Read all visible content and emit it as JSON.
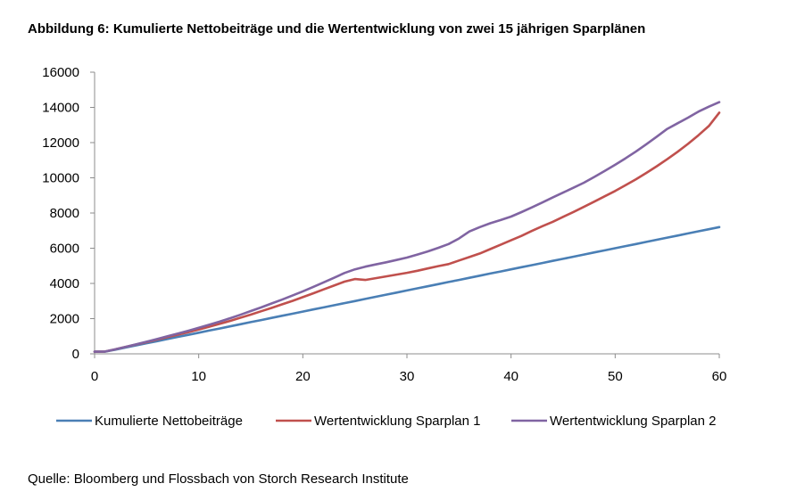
{
  "title": "Abbildung 6: Kumulierte Nettobeiträge und die Wertentwicklung von zwei 15 jährigen Sparplänen",
  "source": "Quelle: Bloomberg und Flossbach von Storch Research Institute",
  "chart_data": {
    "type": "line",
    "title": "Abbildung 6: Kumulierte Nettobeiträge und die Wertentwicklung von zwei 15 jährigen Sparplänen",
    "xlabel": "",
    "ylabel": "",
    "xlim": [
      0,
      60
    ],
    "ylim": [
      0,
      16000
    ],
    "xticks": [
      0,
      10,
      20,
      30,
      40,
      50,
      60
    ],
    "yticks": [
      0,
      2000,
      4000,
      6000,
      8000,
      10000,
      12000,
      14000,
      16000
    ],
    "grid": false,
    "legend_position": "bottom",
    "x": [
      0,
      1,
      2,
      3,
      4,
      5,
      6,
      7,
      8,
      9,
      10,
      11,
      12,
      13,
      14,
      15,
      16,
      17,
      18,
      19,
      20,
      21,
      22,
      23,
      24,
      25,
      26,
      27,
      28,
      29,
      30,
      31,
      32,
      33,
      34,
      35,
      36,
      37,
      38,
      39,
      40,
      41,
      42,
      43,
      44,
      45,
      46,
      47,
      48,
      49,
      50,
      51,
      52,
      53,
      54,
      55,
      56,
      57,
      58,
      59,
      60
    ],
    "series": [
      {
        "name": "Kumulierte Nettobeiträge",
        "color": "#4a7fb5",
        "values": [
          120,
          120,
          240,
          360,
          480,
          600,
          720,
          840,
          960,
          1080,
          1200,
          1320,
          1440,
          1560,
          1680,
          1800,
          1920,
          2040,
          2160,
          2280,
          2400,
          2520,
          2640,
          2760,
          2880,
          3000,
          3120,
          3240,
          3360,
          3480,
          3600,
          3720,
          3840,
          3960,
          4080,
          4200,
          4320,
          4440,
          4560,
          4680,
          4800,
          4920,
          5040,
          5160,
          5280,
          5400,
          5520,
          5640,
          5760,
          5880,
          6000,
          6120,
          6240,
          6360,
          6480,
          6600,
          6720,
          6840,
          6960,
          7080,
          7200
        ]
      },
      {
        "name": "Wertentwicklung Sparplan 1",
        "color": "#c0504d",
        "values": [
          120,
          130,
          260,
          400,
          530,
          670,
          810,
          950,
          1090,
          1230,
          1380,
          1540,
          1700,
          1870,
          2050,
          2230,
          2420,
          2610,
          2810,
          3010,
          3220,
          3440,
          3660,
          3880,
          4100,
          4250,
          4200,
          4300,
          4400,
          4500,
          4600,
          4720,
          4850,
          4980,
          5100,
          5300,
          5500,
          5700,
          5950,
          6200,
          6450,
          6700,
          6980,
          7250,
          7500,
          7780,
          8060,
          8350,
          8650,
          8950,
          9250,
          9580,
          9920,
          10280,
          10660,
          11060,
          11480,
          11930,
          12420,
          12940,
          13700
        ]
      },
      {
        "name": "Wertentwicklung Sparplan 2",
        "color": "#8064a2",
        "values": [
          120,
          130,
          260,
          400,
          540,
          690,
          840,
          1000,
          1150,
          1310,
          1480,
          1650,
          1830,
          2020,
          2220,
          2430,
          2640,
          2860,
          3080,
          3310,
          3550,
          3800,
          4060,
          4320,
          4590,
          4800,
          4950,
          5080,
          5200,
          5330,
          5470,
          5640,
          5820,
          6020,
          6240,
          6550,
          6950,
          7200,
          7420,
          7600,
          7800,
          8050,
          8320,
          8600,
          8880,
          9160,
          9440,
          9720,
          10050,
          10390,
          10740,
          11110,
          11500,
          11910,
          12340,
          12780,
          13100,
          13420,
          13760,
          14040,
          14300
        ]
      }
    ]
  }
}
